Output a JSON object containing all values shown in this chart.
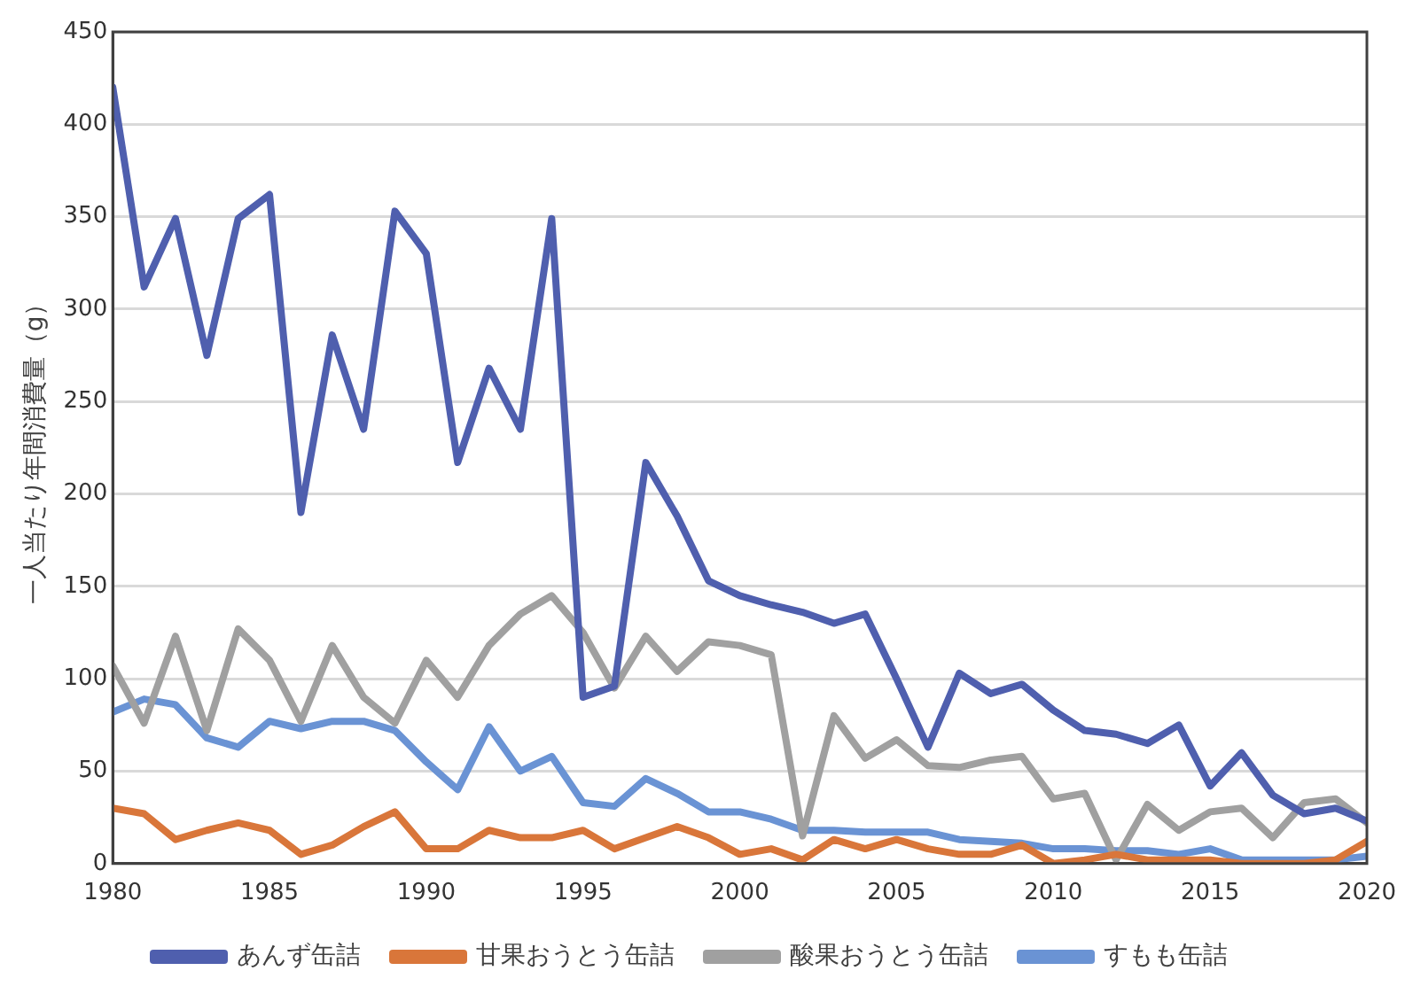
{
  "chart_data": {
    "type": "line",
    "ylabel": "一人当たり年間消費量（g）",
    "x": [
      1980,
      1981,
      1982,
      1983,
      1984,
      1985,
      1986,
      1987,
      1988,
      1989,
      1990,
      1991,
      1992,
      1993,
      1994,
      1995,
      1996,
      1997,
      1998,
      1999,
      2000,
      2001,
      2002,
      2003,
      2004,
      2005,
      2006,
      2007,
      2008,
      2009,
      2010,
      2011,
      2012,
      2013,
      2014,
      2015,
      2016,
      2017,
      2018,
      2019,
      2020
    ],
    "series": [
      {
        "name": "あんず缶詰",
        "color": "#4f5fae",
        "values": [
          420,
          312,
          349,
          275,
          349,
          362,
          190,
          286,
          235,
          353,
          330,
          217,
          268,
          235,
          349,
          90,
          96,
          217,
          188,
          153,
          145,
          140,
          136,
          130,
          135,
          100,
          63,
          103,
          92,
          97,
          83,
          72,
          70,
          65,
          75,
          42,
          60,
          37,
          27,
          30,
          23
        ]
      },
      {
        "name": "甘果おうとう缶詰",
        "color": "#d9763a",
        "values": [
          30,
          27,
          13,
          18,
          22,
          18,
          5,
          10,
          20,
          28,
          8,
          8,
          18,
          14,
          14,
          18,
          8,
          14,
          20,
          14,
          5,
          8,
          2,
          13,
          8,
          13,
          8,
          5,
          5,
          10,
          0,
          2,
          5,
          2,
          2,
          2,
          0,
          0,
          0,
          2,
          12
        ]
      },
      {
        "name": "酸果おうとう缶詰",
        "color": "#a0a0a0",
        "values": [
          107,
          76,
          123,
          72,
          127,
          110,
          77,
          118,
          90,
          76,
          110,
          90,
          118,
          135,
          145,
          125,
          95,
          123,
          104,
          120,
          118,
          113,
          15,
          80,
          57,
          67,
          53,
          52,
          56,
          58,
          35,
          38,
          2,
          32,
          18,
          28,
          30,
          14,
          33,
          35,
          22
        ]
      },
      {
        "name": "すもも缶詰",
        "color": "#6a93d4",
        "values": [
          82,
          89,
          86,
          68,
          63,
          77,
          73,
          77,
          77,
          72,
          55,
          40,
          74,
          50,
          58,
          33,
          31,
          46,
          38,
          28,
          28,
          24,
          18,
          18,
          17,
          17,
          17,
          13,
          12,
          11,
          8,
          8,
          7,
          7,
          5,
          8,
          2,
          2,
          2,
          2,
          4
        ]
      }
    ],
    "xlim": [
      1980,
      2020
    ],
    "xticks": [
      1980,
      1985,
      1990,
      1995,
      2000,
      2005,
      2010,
      2015,
      2020
    ],
    "ylim": [
      0,
      450
    ],
    "yticks": [
      0,
      50,
      100,
      150,
      200,
      250,
      300,
      350,
      400,
      450
    ],
    "grid": "y",
    "legend": "bottom",
    "marker": "none",
    "line_style": "solid"
  }
}
